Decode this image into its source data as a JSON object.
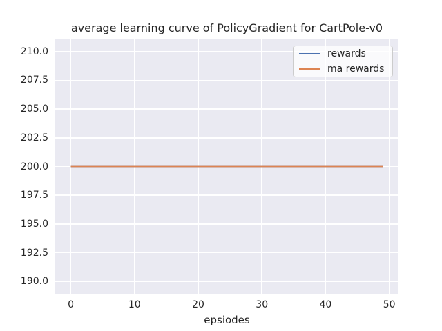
{
  "figure": {
    "background": "#ffffff",
    "axes_background": "#eaeaf2",
    "grid_color": "#ffffff",
    "text_color": "#262626"
  },
  "chart_data": {
    "type": "line",
    "title": "average learning curve of PolicyGradient for CartPole-v0",
    "xlabel": "epsiodes",
    "ylabel": "",
    "xlim": [
      -2.45,
      51.45
    ],
    "ylim": [
      188.95,
      211.05
    ],
    "grid": true,
    "xticks": [
      {
        "value": 0,
        "label": "0"
      },
      {
        "value": 10,
        "label": "10"
      },
      {
        "value": 20,
        "label": "20"
      },
      {
        "value": 30,
        "label": "30"
      },
      {
        "value": 40,
        "label": "40"
      },
      {
        "value": 50,
        "label": "50"
      }
    ],
    "yticks": [
      {
        "value": 190.0,
        "label": "190.0"
      },
      {
        "value": 192.5,
        "label": "192.5"
      },
      {
        "value": 195.0,
        "label": "195.0"
      },
      {
        "value": 197.5,
        "label": "197.5"
      },
      {
        "value": 200.0,
        "label": "200.0"
      },
      {
        "value": 202.5,
        "label": "202.5"
      },
      {
        "value": 205.0,
        "label": "205.0"
      },
      {
        "value": 207.5,
        "label": "207.5"
      },
      {
        "value": 210.0,
        "label": "210.0"
      }
    ],
    "legend": {
      "position": "upper right",
      "entries": [
        {
          "label": "rewards",
          "color": "#4c72b0"
        },
        {
          "label": "ma rewards",
          "color": "#dd8452"
        }
      ]
    },
    "series": [
      {
        "name": "rewards",
        "color": "#4c72b0",
        "note": "constant value 200 for every episode 0-49 (hidden beneath ma rewards line)",
        "x": [
          0,
          49
        ],
        "y": [
          200,
          200
        ]
      },
      {
        "name": "ma rewards",
        "color": "#dd8452",
        "note": "constant value 200 for every episode 0-49",
        "x": [
          0,
          49
        ],
        "y": [
          200,
          200
        ]
      }
    ]
  }
}
